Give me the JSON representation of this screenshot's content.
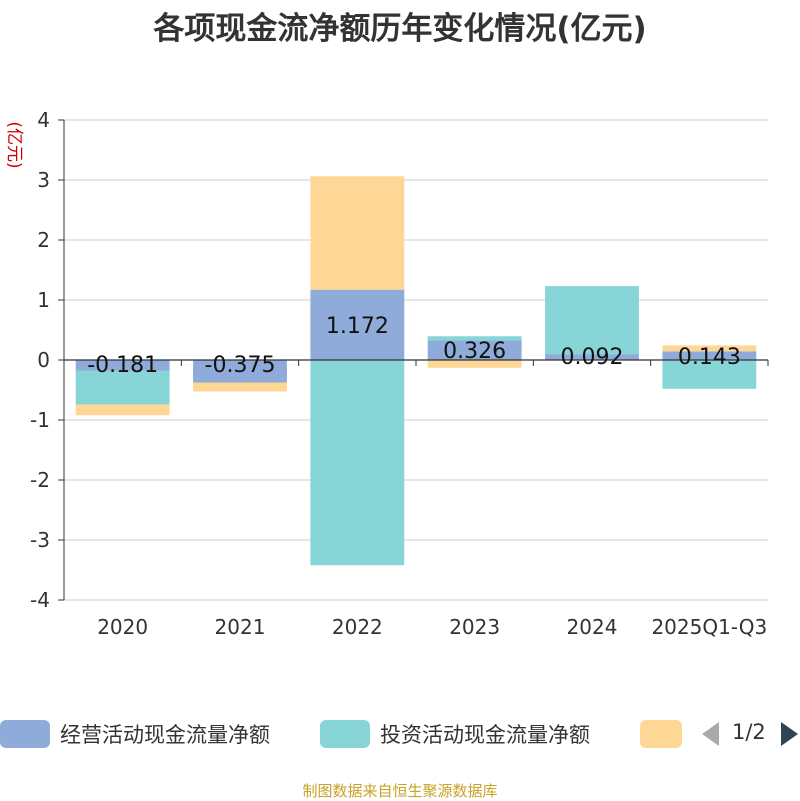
{
  "chart_data": {
    "type": "bar",
    "stacked": true,
    "title": "各项现金流净额历年变化情况(亿元)",
    "ylabel": "(亿元)",
    "ylim": [
      -4,
      4
    ],
    "yticks": [
      "4",
      "3",
      "2",
      "1",
      "0",
      "-1",
      "-2",
      "-3",
      "-4"
    ],
    "categories": [
      "2020",
      "2021",
      "2022",
      "2023",
      "2024",
      "2025Q1-Q3"
    ],
    "series": [
      {
        "name": "经营活动现金流量净额",
        "color": "#8eabd9",
        "values": [
          -0.181,
          -0.375,
          1.172,
          0.326,
          0.092,
          0.143
        ],
        "labels": [
          "-0.181",
          "-0.375",
          "1.172",
          "0.326",
          "0.092",
          "0.143"
        ]
      },
      {
        "name": "投资活动现金流量净额",
        "color": "#88d5d8",
        "values": [
          -0.56,
          0,
          -3.42,
          0.07,
          1.14,
          -0.48
        ]
      },
      {
        "name": "",
        "color": "#fed797",
        "values": [
          -0.18,
          -0.15,
          1.89,
          -0.13,
          0,
          0.1
        ]
      }
    ],
    "grid": true,
    "legend_position": "bottom"
  },
  "legend": {
    "page": "1/2"
  },
  "source": "制图数据来自恒生聚源数据库"
}
